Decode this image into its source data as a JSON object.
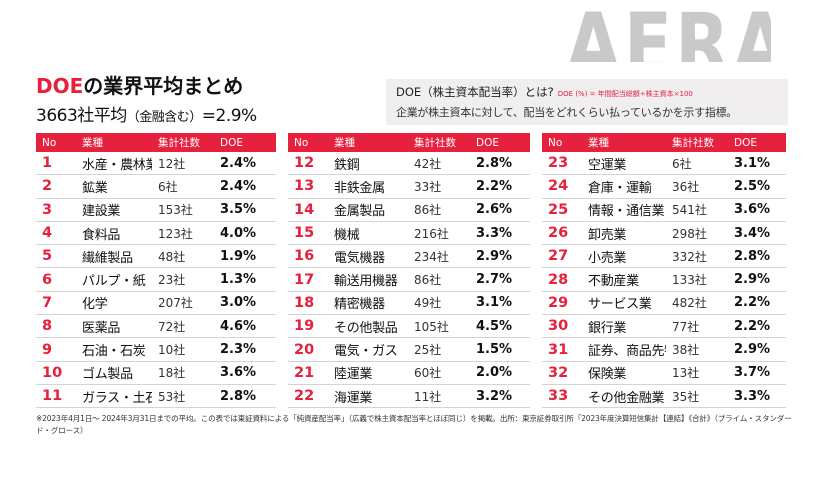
{
  "brand_text": "AERA",
  "title": {
    "accent": "DOE",
    "rest": "の業界平均まとめ"
  },
  "subtitle": {
    "main": "3663社平均",
    "paren": "（金融含む）",
    "value": "=2.9%"
  },
  "definition": {
    "heading": "DOE（株主資本配当率）とは?",
    "formula": "DOE (%) = 年間配当総額÷株主資本×100",
    "text": "企業が株主資本に対して、配当をどれくらい払っているかを示す指標。"
  },
  "columns": {
    "no": "No",
    "industry": "業種",
    "count": "集計社数",
    "doe": "DOE"
  },
  "tables": [
    [
      {
        "no": "1",
        "industry": "水産・農林業",
        "count": "12社",
        "doe": "2.4%"
      },
      {
        "no": "2",
        "industry": "鉱業",
        "count": "6社",
        "doe": "2.4%"
      },
      {
        "no": "3",
        "industry": "建設業",
        "count": "153社",
        "doe": "3.5%"
      },
      {
        "no": "4",
        "industry": "食料品",
        "count": "123社",
        "doe": "4.0%"
      },
      {
        "no": "5",
        "industry": "繊維製品",
        "count": "48社",
        "doe": "1.9%"
      },
      {
        "no": "6",
        "industry": "パルプ・紙",
        "count": "23社",
        "doe": "1.3%"
      },
      {
        "no": "7",
        "industry": "化学",
        "count": "207社",
        "doe": "3.0%"
      },
      {
        "no": "8",
        "industry": "医薬品",
        "count": "72社",
        "doe": "4.6%"
      },
      {
        "no": "9",
        "industry": "石油・石炭",
        "count": "10社",
        "doe": "2.3%"
      },
      {
        "no": "10",
        "industry": "ゴム製品",
        "count": "18社",
        "doe": "3.6%"
      },
      {
        "no": "11",
        "industry": "ガラス・土石",
        "count": "53社",
        "doe": "2.8%"
      }
    ],
    [
      {
        "no": "12",
        "industry": "鉄鋼",
        "count": "42社",
        "doe": "2.8%"
      },
      {
        "no": "13",
        "industry": "非鉄金属",
        "count": "33社",
        "doe": "2.2%"
      },
      {
        "no": "14",
        "industry": "金属製品",
        "count": "86社",
        "doe": "2.6%"
      },
      {
        "no": "15",
        "industry": "機械",
        "count": "216社",
        "doe": "3.3%"
      },
      {
        "no": "16",
        "industry": "電気機器",
        "count": "234社",
        "doe": "2.9%"
      },
      {
        "no": "17",
        "industry": "輸送用機器",
        "count": "86社",
        "doe": "2.7%"
      },
      {
        "no": "18",
        "industry": "精密機器",
        "count": "49社",
        "doe": "3.1%"
      },
      {
        "no": "19",
        "industry": "その他製品",
        "count": "105社",
        "doe": "4.5%"
      },
      {
        "no": "20",
        "industry": "電気・ガス",
        "count": "25社",
        "doe": "1.5%"
      },
      {
        "no": "21",
        "industry": "陸運業",
        "count": "60社",
        "doe": "2.0%"
      },
      {
        "no": "22",
        "industry": "海運業",
        "count": "11社",
        "doe": "3.2%"
      }
    ],
    [
      {
        "no": "23",
        "industry": "空運業",
        "count": "6社",
        "doe": "3.1%"
      },
      {
        "no": "24",
        "industry": "倉庫・運輸",
        "count": "36社",
        "doe": "2.5%"
      },
      {
        "no": "25",
        "industry": "情報・通信業",
        "count": "541社",
        "doe": "3.6%"
      },
      {
        "no": "26",
        "industry": "卸売業",
        "count": "298社",
        "doe": "3.4%"
      },
      {
        "no": "27",
        "industry": "小売業",
        "count": "332社",
        "doe": "2.8%"
      },
      {
        "no": "28",
        "industry": "不動産業",
        "count": "133社",
        "doe": "2.9%"
      },
      {
        "no": "29",
        "industry": "サービス業",
        "count": "482社",
        "doe": "2.2%"
      },
      {
        "no": "30",
        "industry": "銀行業",
        "count": "77社",
        "doe": "2.2%"
      },
      {
        "no": "31",
        "industry": "証券、商品先物",
        "count": "38社",
        "doe": "2.9%"
      },
      {
        "no": "32",
        "industry": "保険業",
        "count": "13社",
        "doe": "3.7%"
      },
      {
        "no": "33",
        "industry": "その他金融業",
        "count": "35社",
        "doe": "3.3%"
      }
    ]
  ],
  "footnote": "※2023年4月1日～ 2024年3月31日までの平均。この表では東証資料による「純資産配当率」（広義で株主資本配当率とほぼ同じ）を掲載。出所：東京証券取引所「2023年度決算短信集計【連結】《合計》（プライム・スタンダード・グロース）",
  "colors": {
    "accent": "#e5213d",
    "brand_gray": "#c9c9c9",
    "box_bg": "#f0eeee"
  }
}
